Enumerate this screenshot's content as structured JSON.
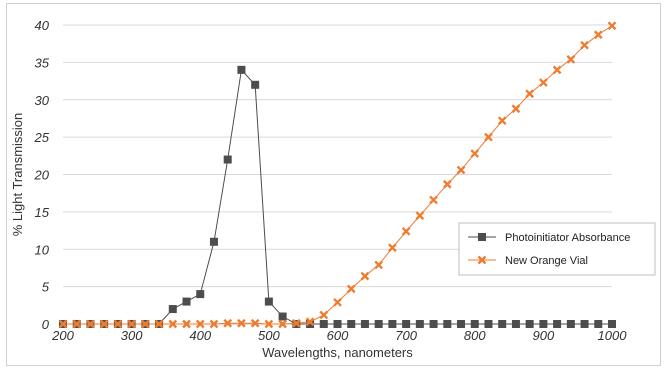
{
  "chart_data": {
    "type": "line",
    "title": "",
    "xlabel": "Wavelengths, nanometers",
    "ylabel": "% Light Transmission",
    "xlim": [
      200,
      1000
    ],
    "ylim": [
      0,
      40
    ],
    "xticks": [
      200,
      300,
      400,
      500,
      600,
      700,
      800,
      900,
      1000
    ],
    "yticks": [
      0,
      5,
      10,
      15,
      20,
      25,
      30,
      35,
      40
    ],
    "grid": "horizontal",
    "legend_position": "right",
    "series": [
      {
        "name": "Photoinitiator Absorbance",
        "color": "#4d4d4d",
        "marker": "square",
        "points": [
          [
            200,
            0
          ],
          [
            220,
            0
          ],
          [
            240,
            0
          ],
          [
            260,
            0
          ],
          [
            280,
            0
          ],
          [
            300,
            0
          ],
          [
            320,
            0
          ],
          [
            340,
            0
          ],
          [
            360,
            2
          ],
          [
            380,
            3
          ],
          [
            400,
            4
          ],
          [
            420,
            11
          ],
          [
            440,
            22
          ],
          [
            460,
            34
          ],
          [
            480,
            32
          ],
          [
            500,
            3
          ],
          [
            520,
            1
          ],
          [
            540,
            0
          ],
          [
            560,
            0
          ],
          [
            580,
            0
          ],
          [
            600,
            0
          ],
          [
            620,
            0
          ],
          [
            640,
            0
          ],
          [
            660,
            0
          ],
          [
            680,
            0
          ],
          [
            700,
            0
          ],
          [
            720,
            0
          ],
          [
            740,
            0
          ],
          [
            760,
            0
          ],
          [
            780,
            0
          ],
          [
            800,
            0
          ],
          [
            820,
            0
          ],
          [
            840,
            0
          ],
          [
            860,
            0
          ],
          [
            880,
            0
          ],
          [
            900,
            0
          ],
          [
            920,
            0
          ],
          [
            940,
            0
          ],
          [
            960,
            0
          ],
          [
            980,
            0
          ],
          [
            1000,
            0
          ]
        ]
      },
      {
        "name": "New Orange Vial",
        "color": "#ed7d31",
        "marker": "x",
        "points": [
          [
            200,
            0
          ],
          [
            220,
            0
          ],
          [
            240,
            0
          ],
          [
            260,
            0
          ],
          [
            280,
            0
          ],
          [
            300,
            0
          ],
          [
            320,
            0
          ],
          [
            340,
            0
          ],
          [
            360,
            0
          ],
          [
            380,
            0
          ],
          [
            400,
            0
          ],
          [
            420,
            0
          ],
          [
            440,
            0.1
          ],
          [
            460,
            0.1
          ],
          [
            480,
            0.1
          ],
          [
            500,
            0
          ],
          [
            520,
            0
          ],
          [
            540,
            0.1
          ],
          [
            560,
            0.3
          ],
          [
            580,
            1.2
          ],
          [
            600,
            2.9
          ],
          [
            620,
            4.7
          ],
          [
            640,
            6.4
          ],
          [
            660,
            7.9
          ],
          [
            680,
            10.2
          ],
          [
            700,
            12.4
          ],
          [
            720,
            14.5
          ],
          [
            740,
            16.6
          ],
          [
            760,
            18.7
          ],
          [
            780,
            20.6
          ],
          [
            800,
            22.8
          ],
          [
            820,
            25.0
          ],
          [
            840,
            27.2
          ],
          [
            860,
            28.8
          ],
          [
            880,
            30.8
          ],
          [
            900,
            32.3
          ],
          [
            920,
            34.0
          ],
          [
            940,
            35.4
          ],
          [
            960,
            37.3
          ],
          [
            980,
            38.7
          ],
          [
            1000,
            39.9
          ]
        ]
      }
    ]
  }
}
